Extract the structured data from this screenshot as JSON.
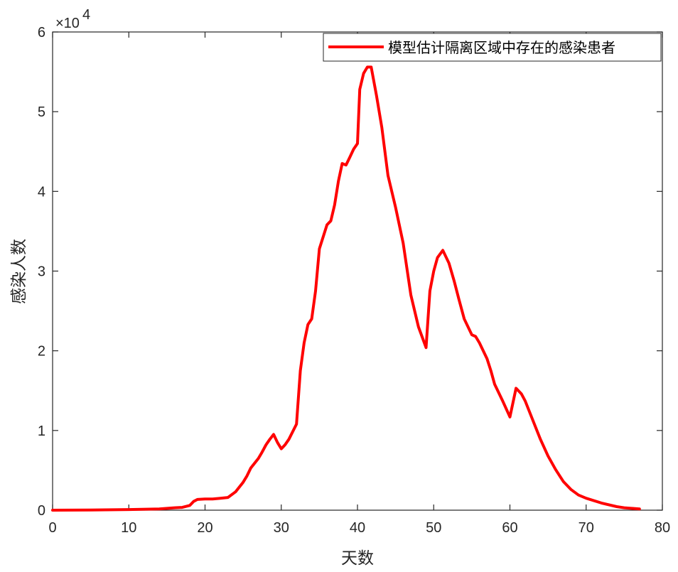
{
  "chart_data": {
    "type": "line",
    "xlabel": "天数",
    "ylabel": "感染人数",
    "xlim": [
      0,
      80
    ],
    "ylim": [
      0,
      60000
    ],
    "xticks": [
      0,
      10,
      20,
      30,
      40,
      50,
      60,
      70,
      80
    ],
    "xtick_labels": [
      "0",
      "10",
      "20",
      "30",
      "40",
      "50",
      "60",
      "70",
      "80"
    ],
    "yticks": [
      0,
      10000,
      20000,
      30000,
      40000,
      50000,
      60000
    ],
    "ytick_labels": [
      "0",
      "1",
      "2",
      "3",
      "4",
      "5",
      "6"
    ],
    "y_exponent_label": "×10",
    "y_exponent_power": "4",
    "grid": false,
    "legend_position": "top-right",
    "series": [
      {
        "name": "模型估计隔离区域中存在的感染患者",
        "color": "#ff0000",
        "points": [
          [
            0,
            0
          ],
          [
            5,
            30
          ],
          [
            10,
            80
          ],
          [
            14,
            150
          ],
          [
            16,
            300
          ],
          [
            17,
            350
          ],
          [
            18,
            600
          ],
          [
            18.5,
            1100
          ],
          [
            19,
            1350
          ],
          [
            20,
            1400
          ],
          [
            21,
            1400
          ],
          [
            22,
            1500
          ],
          [
            23,
            1600
          ],
          [
            24,
            2300
          ],
          [
            25,
            3500
          ],
          [
            25.5,
            4300
          ],
          [
            26,
            5300
          ],
          [
            27,
            6500
          ],
          [
            27.5,
            7300
          ],
          [
            28,
            8200
          ],
          [
            28.5,
            8900
          ],
          [
            29,
            9500
          ],
          [
            29.5,
            8500
          ],
          [
            30,
            7700
          ],
          [
            30.5,
            8200
          ],
          [
            31,
            8900
          ],
          [
            32,
            10800
          ],
          [
            32.5,
            17500
          ],
          [
            33,
            21000
          ],
          [
            33.5,
            23300
          ],
          [
            34,
            24000
          ],
          [
            34.5,
            27500
          ],
          [
            35,
            32800
          ],
          [
            36,
            35800
          ],
          [
            36.5,
            36300
          ],
          [
            37,
            38300
          ],
          [
            37.5,
            41300
          ],
          [
            38,
            43500
          ],
          [
            38.5,
            43300
          ],
          [
            39,
            44300
          ],
          [
            39.5,
            45300
          ],
          [
            40,
            46000
          ],
          [
            40.3,
            52800
          ],
          [
            40.8,
            54800
          ],
          [
            41.3,
            55600
          ],
          [
            41.8,
            55600
          ],
          [
            42.5,
            52000
          ],
          [
            43.2,
            48000
          ],
          [
            44,
            42000
          ],
          [
            45,
            38000
          ],
          [
            46,
            33500
          ],
          [
            47,
            27000
          ],
          [
            48,
            23000
          ],
          [
            49,
            20400
          ],
          [
            49.5,
            27500
          ],
          [
            50,
            30000
          ],
          [
            50.5,
            31700
          ],
          [
            51.2,
            32600
          ],
          [
            52,
            31000
          ],
          [
            52.7,
            28700
          ],
          [
            53.3,
            26500
          ],
          [
            54,
            24000
          ],
          [
            55,
            22000
          ],
          [
            55.5,
            21800
          ],
          [
            56,
            21000
          ],
          [
            57,
            19000
          ],
          [
            57.5,
            17500
          ],
          [
            58,
            15800
          ],
          [
            59,
            13800
          ],
          [
            60,
            11700
          ],
          [
            60.8,
            15300
          ],
          [
            61.5,
            14600
          ],
          [
            62,
            13700
          ],
          [
            63,
            11300
          ],
          [
            64,
            8900
          ],
          [
            65,
            6800
          ],
          [
            66,
            5100
          ],
          [
            67,
            3600
          ],
          [
            68,
            2600
          ],
          [
            69,
            1900
          ],
          [
            70,
            1500
          ],
          [
            72,
            900
          ],
          [
            74,
            450
          ],
          [
            75,
            300
          ],
          [
            77,
            150
          ]
        ]
      }
    ]
  }
}
